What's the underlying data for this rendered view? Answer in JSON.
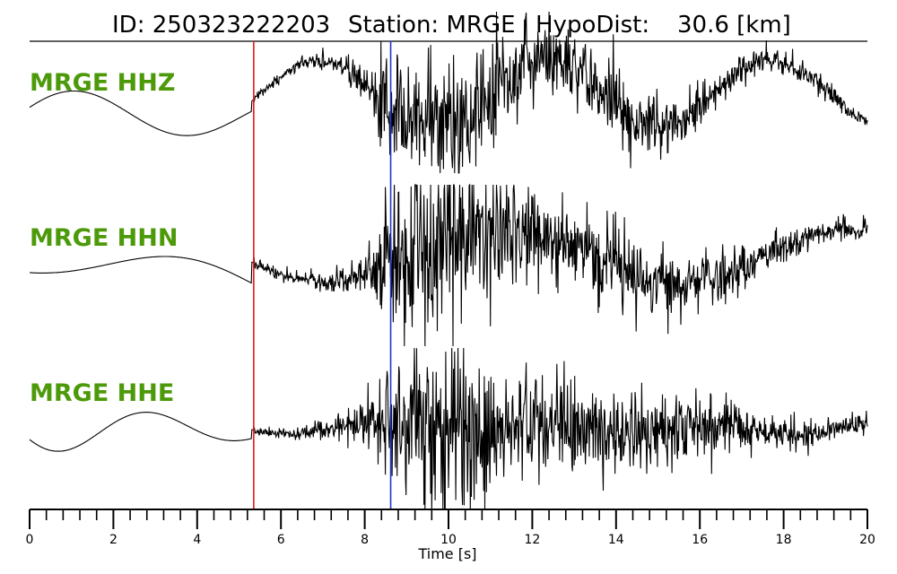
{
  "header": {
    "id_text": "ID: 250323222203",
    "station_text": "Station: MRGE",
    "hypodist_text": "HypoDist:",
    "hypodist_value": "30.6 [km]"
  },
  "chart_data": {
    "type": "line",
    "xlabel": "Time [s]",
    "xlim": [
      0,
      20
    ],
    "major_ticks": [
      0,
      2,
      4,
      6,
      8,
      10,
      12,
      14,
      16,
      18,
      20
    ],
    "minor_tick_step": 0.4,
    "markers": [
      {
        "phase": "P",
        "time": 5.35,
        "color": "#e41a1c"
      },
      {
        "phase": "S",
        "time": 8.62,
        "color": "#2233cc"
      }
    ],
    "label_color": "#4c9a09",
    "trace_color": "#000000",
    "series": [
      {
        "name": "MRGE HHZ",
        "label": "MRGE HHZ"
      },
      {
        "name": "MRGE HHN",
        "label": "MRGE HHN"
      },
      {
        "name": "MRGE HHE",
        "label": "MRGE HHE"
      }
    ]
  }
}
